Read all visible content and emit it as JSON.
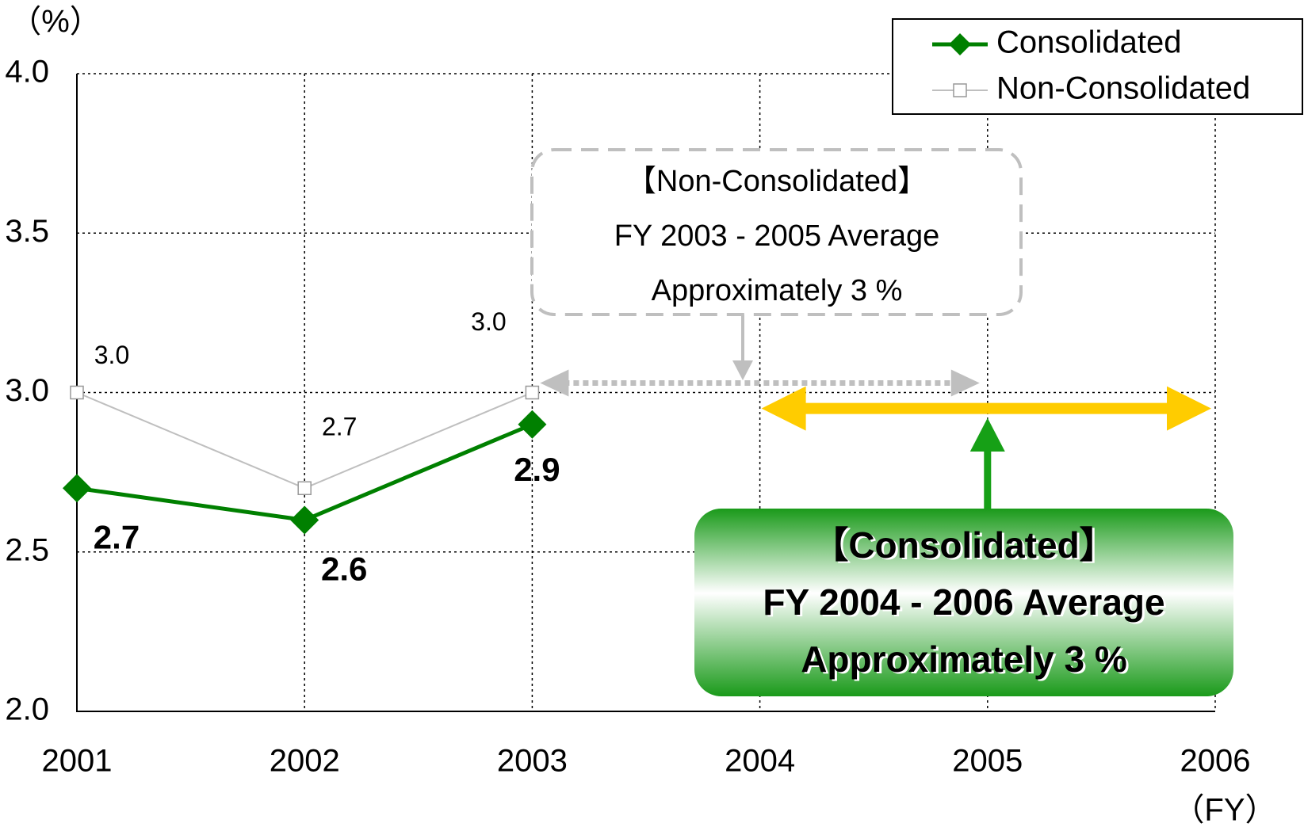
{
  "chart_data": {
    "type": "line",
    "y_label": "（%）",
    "x_label": "（FY）",
    "categories": [
      "2001",
      "2002",
      "2003",
      "2004",
      "2005",
      "2006"
    ],
    "series": [
      {
        "name": "Consolidated",
        "color": "#008000",
        "marker": "diamond",
        "values": [
          2.7,
          2.6,
          2.9,
          null,
          null,
          null
        ]
      },
      {
        "name": "Non-Consolidated",
        "color": "#bfbfbf",
        "marker": "square",
        "values": [
          3.0,
          2.7,
          3.0,
          null,
          null,
          null
        ],
        "value_labels": [
          "3.0",
          "2.7",
          "3.0",
          null,
          null,
          null
        ]
      }
    ],
    "ylim": [
      2.0,
      4.0
    ],
    "yticks": [
      {
        "value": 2.0,
        "label": "2.0"
      },
      {
        "value": 2.5,
        "label": "2.5"
      },
      {
        "value": 3.0,
        "label": "3.0"
      },
      {
        "value": 3.5,
        "label": "3.5"
      },
      {
        "value": 4.0,
        "label": "4.0"
      }
    ],
    "grid": true,
    "legend": "top-right",
    "annotations": [
      {
        "lines": [
          "【Non-Consolidated】",
          "FY 2003 - 2005 Average",
          "Approximately  3 %"
        ],
        "span": [
          "2003",
          "2005"
        ],
        "level": 3.0
      },
      {
        "lines": [
          "【Consolidated】",
          "FY 2004 - 2006 Average",
          "Approximately  3 %"
        ],
        "span": [
          "2004",
          "2006"
        ],
        "level": 2.95
      }
    ]
  }
}
